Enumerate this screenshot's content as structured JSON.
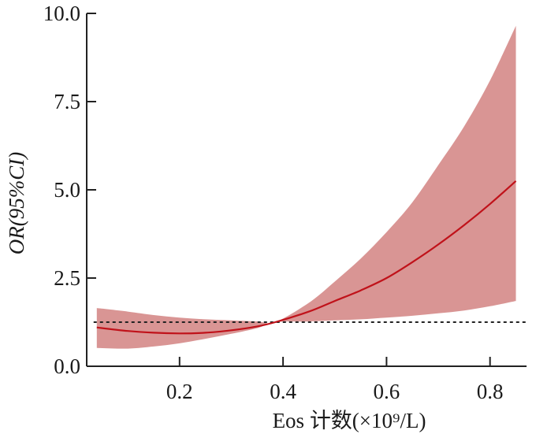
{
  "chart_data": {
    "type": "area",
    "title": "",
    "xlabel": "Eos 计数(×10⁹/L)",
    "ylabel": "OR(95%CI)",
    "xlim": [
      0.04,
      0.85
    ],
    "ylim": [
      0,
      10
    ],
    "x_ticks": [
      0.2,
      0.4,
      0.6,
      0.8
    ],
    "x_tick_labels": [
      "0.2",
      "0.4",
      "0.6",
      "0.8"
    ],
    "y_ticks": [
      0,
      2.5,
      5,
      7.5,
      10
    ],
    "y_tick_labels": [
      "0.0",
      "2.5",
      "5.0",
      "7.5",
      "10.0"
    ],
    "grid": false,
    "reference_line": {
      "y": 1.25,
      "style": "dashed",
      "color": "#222222"
    },
    "colors": {
      "line": "#c0121a",
      "band": "#d99594",
      "axis": "#222222"
    },
    "series": [
      {
        "x": [
          0.04,
          0.1,
          0.15,
          0.2,
          0.25,
          0.3,
          0.35,
          0.385,
          0.45,
          0.5,
          0.55,
          0.6,
          0.65,
          0.7,
          0.75,
          0.8,
          0.85
        ],
        "y": [
          1.1,
          1.0,
          0.95,
          0.93,
          0.95,
          1.02,
          1.13,
          1.25,
          1.55,
          1.85,
          2.15,
          2.5,
          2.95,
          3.45,
          4.0,
          4.6,
          5.25
        ],
        "lower": [
          0.52,
          0.5,
          0.56,
          0.65,
          0.78,
          0.92,
          1.08,
          1.25,
          1.27,
          1.3,
          1.33,
          1.38,
          1.43,
          1.5,
          1.58,
          1.7,
          1.85
        ],
        "upper": [
          1.65,
          1.55,
          1.45,
          1.38,
          1.33,
          1.3,
          1.27,
          1.25,
          1.8,
          2.4,
          3.05,
          3.8,
          4.65,
          5.7,
          6.8,
          8.1,
          9.65
        ]
      }
    ]
  }
}
